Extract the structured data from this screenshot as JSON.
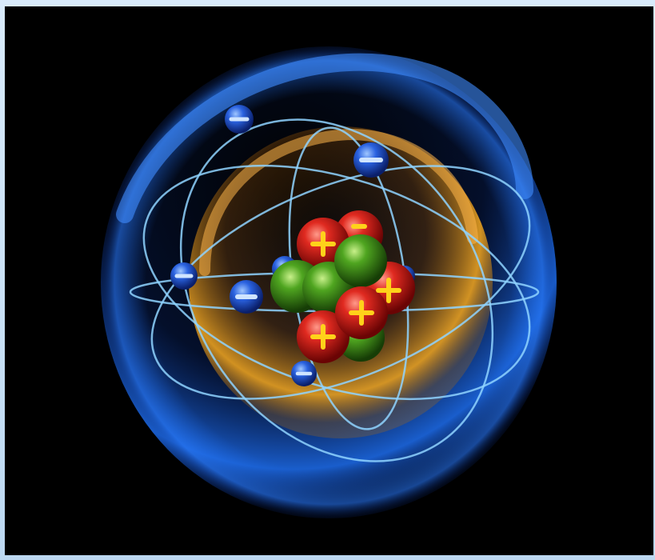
{
  "image": {
    "subject": "atom-model",
    "electron_count": 6,
    "proton_count": 5,
    "neutron_count": 4,
    "electron_sign": "−",
    "proton_sign": "+",
    "colors": {
      "background": "#000000",
      "border": "#cfe3f6",
      "outer_shell": "#1e6ef0",
      "inner_shell": "#e8a020",
      "orbit": "#8fd3ff",
      "electron": "#1a55d8",
      "proton": "#d81818",
      "neutron": "#3f9a1a",
      "sign": "#ffd21a"
    },
    "icons": {
      "electron": "minus-sign-icon",
      "proton": "plus-sign-icon"
    }
  }
}
